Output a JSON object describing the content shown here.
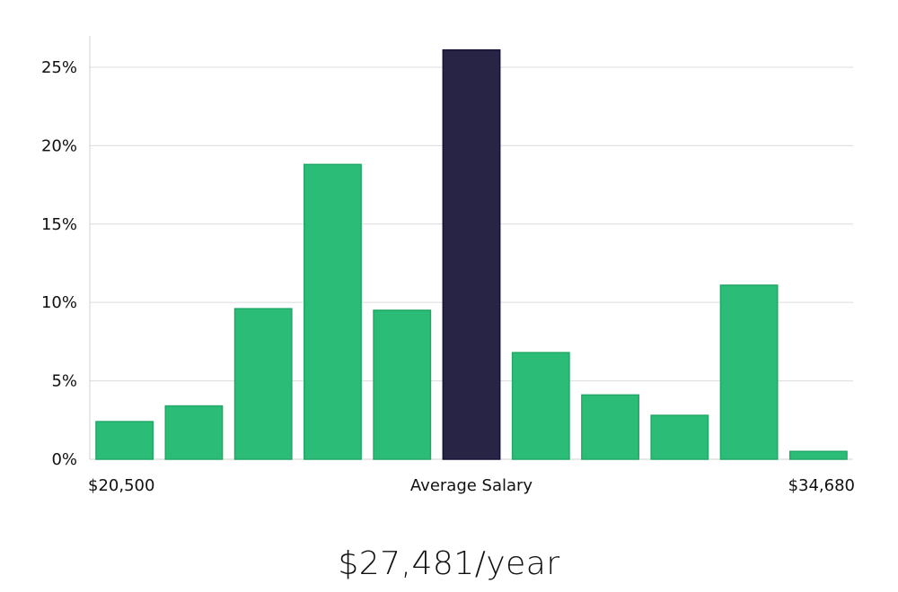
{
  "chart_data": {
    "type": "bar",
    "title": "",
    "xlabel": "Average Salary",
    "ylabel": "",
    "x_min_label": "$20,500",
    "x_max_label": "$34,680",
    "ylim": [
      0,
      27
    ],
    "yticks": [
      0,
      5,
      10,
      15,
      20,
      25
    ],
    "ytick_labels": [
      "0%",
      "5%",
      "10%",
      "15%",
      "20%",
      "25%"
    ],
    "values": [
      2.4,
      3.4,
      9.6,
      18.8,
      9.5,
      26.1,
      6.8,
      4.1,
      2.8,
      11.1,
      0.5
    ],
    "highlight_index": 5,
    "colors": {
      "bar": "#2bbd77",
      "bar_stroke": "#22a866",
      "highlight": "#272446",
      "highlight_stroke": "#15133a"
    }
  },
  "summary": {
    "salary": "$27,481/year"
  }
}
